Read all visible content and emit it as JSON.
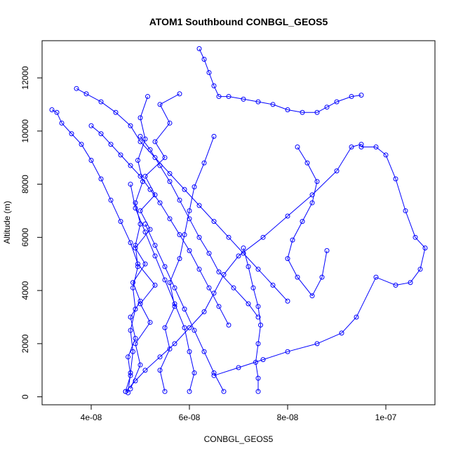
{
  "chart_data": {
    "type": "line",
    "title": "ATOM1 Southbound CONBGL_GEOS5",
    "xlabel": "CONBGL_GEOS5",
    "ylabel": "Altitude (m)",
    "xlim": [
      3e-08,
      1.1e-07
    ],
    "ylim": [
      -300,
      13400
    ],
    "x_ticks": [
      4e-08,
      6e-08,
      8e-08,
      1e-07
    ],
    "x_tick_labels": [
      "4e-08",
      "6e-08",
      "8e-08",
      "1e-07"
    ],
    "y_ticks": [
      0,
      2000,
      4000,
      6000,
      8000,
      10000,
      12000
    ],
    "y_tick_labels": [
      "0",
      "2000",
      "4000",
      "6000",
      "8000",
      "10000",
      "12000"
    ],
    "grid": false,
    "legend": "none",
    "series_color": "#0000ff",
    "marker": "open-circle",
    "series": [
      {
        "x": [
          4.7e-08,
          4.8e-08,
          4.75e-08,
          4.9e-08,
          4.8e-08,
          5e-08,
          4.85e-08,
          5.1e-08,
          4.9e-08,
          5.2e-08,
          5e-08,
          5.3e-08,
          5.1e-08,
          5.5e-08,
          5.3e-08,
          5.6e-08,
          5.4e-08,
          5.8e-08
        ],
        "y": [
          200,
          800,
          1500,
          2200,
          3000,
          3600,
          4300,
          5000,
          5600,
          6300,
          7000,
          7600,
          8300,
          9000,
          9600,
          10300,
          11000,
          11400
        ]
      },
      {
        "x": [
          4.8e-08,
          5e-08,
          4.9e-08,
          5.2e-08,
          5e-08,
          5.3e-08,
          4.95e-08,
          4.8e-08,
          4.6e-08,
          4.4e-08,
          4.2e-08,
          4e-08,
          3.8e-08,
          3.6e-08,
          3.4e-08,
          3.3e-08,
          3.2e-08
        ],
        "y": [
          300,
          1200,
          2000,
          2800,
          3500,
          4200,
          5000,
          5800,
          6600,
          7400,
          8200,
          8900,
          9500,
          9900,
          10300,
          10700,
          10800
        ]
      },
      {
        "x": [
          4.7e-08,
          4.9e-08,
          5.1e-08,
          5.4e-08,
          5.7e-08,
          6e-08,
          6.3e-08,
          6.5e-08,
          6.7e-08,
          7e-08,
          7.5e-08,
          8e-08,
          8.5e-08,
          9e-08,
          9.3e-08,
          9.5e-08
        ],
        "y": [
          200,
          600,
          1000,
          1500,
          2000,
          2600,
          3200,
          3900,
          4600,
          5300,
          6000,
          6800,
          7600,
          8500,
          9400,
          9500
        ]
      },
      {
        "x": [
          9.5e-08,
          9.8e-08,
          1e-07,
          1.02e-07,
          1.04e-07,
          1.06e-07,
          1.08e-07,
          1.07e-07,
          1.05e-07,
          1.02e-07,
          9.8e-08,
          9.4e-08,
          9.1e-08,
          8.6e-08,
          8e-08,
          7.5e-08,
          7e-08,
          6.5e-08
        ],
        "y": [
          9400,
          9400,
          9100,
          8200,
          7000,
          6000,
          5600,
          4800,
          4300,
          4200,
          4500,
          3000,
          2400,
          2000,
          1700,
          1400,
          1100,
          800
        ]
      },
      {
        "x": [
          3.7e-08,
          3.9e-08,
          4.2e-08,
          4.5e-08,
          4.8e-08,
          5e-08,
          5.3e-08,
          5.6e-08,
          5.9e-08,
          6.2e-08,
          6.5e-08,
          6.8e-08,
          7.1e-08,
          7.4e-08,
          7.7e-08,
          8e-08
        ],
        "y": [
          11600,
          11400,
          11100,
          10700,
          10200,
          9600,
          9000,
          8400,
          7800,
          7200,
          6600,
          6000,
          5400,
          4800,
          4200,
          3600
        ]
      },
      {
        "x": [
          6.2e-08,
          6.3e-08,
          6.4e-08,
          6.5e-08,
          6.6e-08,
          6.8e-08,
          7.1e-08,
          7.4e-08,
          7.7e-08,
          8e-08,
          8.3e-08,
          8.6e-08,
          8.8e-08,
          9e-08,
          9.3e-08,
          9.5e-08
        ],
        "y": [
          13100,
          12700,
          12200,
          11700,
          11300,
          11300,
          11200,
          11100,
          11000,
          10800,
          10700,
          10700,
          10900,
          11100,
          11300,
          11350
        ]
      },
      {
        "x": [
          5e-08,
          5.2e-08,
          5.4e-08,
          5.6e-08,
          5.8e-08,
          6e-08,
          6.2e-08,
          6.4e-08,
          6.6e-08,
          6.9e-08,
          7.2e-08,
          7.4e-08
        ],
        "y": [
          9800,
          9300,
          8700,
          8100,
          7400,
          6700,
          6000,
          5400,
          4700,
          4100,
          3500,
          3000
        ]
      },
      {
        "x": [
          7.4e-08,
          7.4e-08,
          7.35e-08,
          7.4e-08,
          7.45e-08,
          7.4e-08,
          7.3e-08,
          7.2e-08,
          7.1e-08
        ],
        "y": [
          200,
          700,
          1300,
          2000,
          2700,
          3400,
          4100,
          4900,
          5600
        ]
      },
      {
        "x": [
          4.75e-08,
          4.8e-08,
          4.85e-08,
          4.8e-08,
          4.9e-08,
          4.85e-08,
          4.95e-08,
          4.9e-08,
          5e-08,
          4.9e-08,
          5.05e-08,
          4.95e-08,
          5.1e-08,
          5e-08,
          5.15e-08
        ],
        "y": [
          150,
          900,
          1700,
          2500,
          3300,
          4100,
          4900,
          5700,
          6500,
          7300,
          8100,
          8900,
          9700,
          10500,
          11300
        ]
      },
      {
        "x": [
          5.5e-08,
          5.4e-08,
          5.6e-08,
          5.5e-08,
          5.7e-08,
          5.6e-08,
          5.8e-08,
          5.9e-08,
          6e-08,
          6.1e-08,
          6.3e-08,
          6.5e-08
        ],
        "y": [
          200,
          1000,
          1800,
          2600,
          3400,
          4300,
          5200,
          6100,
          7000,
          7900,
          8800,
          9800
        ]
      },
      {
        "x": [
          4e-08,
          4.2e-08,
          4.4e-08,
          4.6e-08,
          4.8e-08,
          5e-08,
          5.2e-08,
          5.4e-08,
          5.6e-08,
          5.8e-08,
          6e-08,
          6.2e-08,
          6.4e-08,
          6.6e-08,
          6.8e-08
        ],
        "y": [
          10200,
          9900,
          9500,
          9100,
          8700,
          8300,
          7800,
          7300,
          6700,
          6100,
          5500,
          4800,
          4100,
          3400,
          2700
        ]
      },
      {
        "x": [
          6e-08,
          6.1e-08,
          6e-08,
          5.9e-08,
          5.7e-08,
          5.5e-08,
          5.3e-08,
          5.1e-08,
          4.9e-08,
          4.8e-08
        ],
        "y": [
          200,
          900,
          1700,
          2600,
          3500,
          4400,
          5300,
          6200,
          7100,
          8000
        ]
      },
      {
        "x": [
          8.2e-08,
          8.4e-08,
          8.6e-08,
          8.5e-08,
          8.3e-08,
          8.1e-08,
          8e-08,
          8.2e-08,
          8.5e-08,
          8.7e-08,
          8.8e-08
        ],
        "y": [
          9400,
          8800,
          8100,
          7300,
          6600,
          5900,
          5200,
          4500,
          3800,
          4500,
          5500
        ]
      },
      {
        "x": [
          6.7e-08,
          6.5e-08,
          6.3e-08,
          6.1e-08,
          5.9e-08,
          5.7e-08,
          5.5e-08,
          5.3e-08,
          5.1e-08
        ],
        "y": [
          200,
          900,
          1700,
          2500,
          3300,
          4100,
          4900,
          5700,
          6500
        ]
      }
    ]
  }
}
